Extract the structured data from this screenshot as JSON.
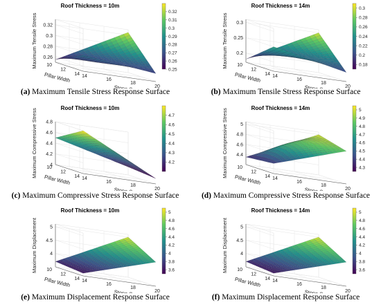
{
  "colors": {
    "viridis": [
      "#440154",
      "#3b528b",
      "#21918c",
      "#5ec962",
      "#fde725"
    ],
    "grid": "#e6e6e6",
    "axis": "#555555"
  },
  "chart_data": [
    {
      "type": "surface3d",
      "title": "Roof Thickness = 10m",
      "xlabel": "Stope Span",
      "ylabel": "Pillar Width",
      "zlabel": "Maximum Tensile Stress",
      "x_ticks": [
        "14",
        "16",
        "18",
        "20"
      ],
      "y_ticks": [
        "10",
        "12",
        "14"
      ],
      "z_ticks": [
        "0.26",
        "0.28",
        "0.3",
        "0.32"
      ],
      "colorbar_ticks": [
        "0.25",
        "0.26",
        "0.27",
        "0.28",
        "0.29",
        "0.3",
        "0.31",
        "0.32"
      ],
      "corners": {
        "x14_y14": 0.28,
        "x20_y14": 0.265,
        "x14_y10": 0.255,
        "x20_y10": 0.325
      },
      "center": 0.27,
      "zlim": [
        0.25,
        0.33
      ],
      "clim": [
        0.25,
        0.33
      ],
      "caption_tag": "(a)",
      "caption_text": " Maximum Tensile Stress Response Surface"
    },
    {
      "type": "surface3d",
      "title": "Roof Thickness = 14m",
      "xlabel": "Stope Span",
      "ylabel": "Pillar Width",
      "zlabel": "Maximum Tensile Stress",
      "x_ticks": [
        "14",
        "16",
        "18",
        "20"
      ],
      "y_ticks": [
        "10",
        "12",
        "14"
      ],
      "z_ticks": [
        "0.2",
        "0.25",
        "0.3"
      ],
      "colorbar_ticks": [
        "0.18",
        "0.2",
        "0.22",
        "0.24",
        "0.26",
        "0.28",
        "0.3"
      ],
      "corners": {
        "x14_y14": 0.25,
        "x20_y14": 0.2,
        "x14_y10": 0.18,
        "x20_y10": 0.3
      },
      "center": 0.22,
      "zlim": [
        0.17,
        0.31
      ],
      "clim": [
        0.17,
        0.31
      ],
      "caption_tag": "(b)",
      "caption_text": " Maximum Tensile Stress Response Surface"
    },
    {
      "type": "surface3d",
      "title": "Roof Thickness = 10m",
      "xlabel": "Stope Span",
      "ylabel": "Pillar Width",
      "zlabel": "Maximum Compressive Stress",
      "x_ticks": [
        "14",
        "16",
        "18",
        "20"
      ],
      "y_ticks": [
        "10",
        "12",
        "14"
      ],
      "z_ticks": [
        "4",
        "4.2",
        "4.4",
        "4.6",
        "4.8"
      ],
      "colorbar_ticks": [
        "4.2",
        "4.3",
        "4.4",
        "4.5",
        "4.6",
        "4.7"
      ],
      "corners": {
        "x14_y14": 4.8,
        "x20_y14": 4.1,
        "x14_y10": 4.5,
        "x20_y10": 4.15
      },
      "center": 4.45,
      "zlim": [
        4.0,
        4.8
      ],
      "clim": [
        4.1,
        4.8
      ],
      "caption_tag": "(c)",
      "caption_text": " Maximum Compressive Stress Response Surface"
    },
    {
      "type": "surface3d",
      "title": "Roof Thickness = 14m",
      "xlabel": "Stope Span",
      "ylabel": "Pillar Width",
      "zlabel": "Maximum Compressive Stress",
      "x_ticks": [
        "14",
        "16",
        "18",
        "20"
      ],
      "y_ticks": [
        "10",
        "12",
        "14"
      ],
      "z_ticks": [
        "4.4",
        "4.6",
        "4.8",
        "5"
      ],
      "colorbar_ticks": [
        "4.3",
        "4.4",
        "4.5",
        "4.6",
        "4.7",
        "4.8",
        "4.9",
        "5"
      ],
      "corners": {
        "x14_y14": 4.4,
        "x20_y14": 4.85,
        "x14_y10": 4.35,
        "x20_y10": 5.0
      },
      "center": 4.8,
      "zlim": [
        4.2,
        5.05
      ],
      "clim": [
        4.25,
        5.05
      ],
      "caption_tag": "(d)",
      "caption_text": " Maximum Compressive Stress Response Surface"
    },
    {
      "type": "surface3d",
      "title": "Roof Thickness = 10m",
      "xlabel": "Stope Span",
      "ylabel": "Pillar Width",
      "zlabel": "Maximum Displacement",
      "x_ticks": [
        "14",
        "16",
        "18",
        "20"
      ],
      "y_ticks": [
        "10",
        "12",
        "14"
      ],
      "z_ticks": [
        "4",
        "4.5",
        "5"
      ],
      "colorbar_ticks": [
        "3.6",
        "3.8",
        "4",
        "4.2",
        "4.4",
        "4.6",
        "4.8",
        "5"
      ],
      "corners": {
        "x14_y14": 3.6,
        "x20_y14": 4.4,
        "x14_y10": 3.7,
        "x20_y10": 5.0
      },
      "center": 4.1,
      "zlim": [
        3.5,
        5.1
      ],
      "clim": [
        3.5,
        5.1
      ],
      "caption_tag": "(e)",
      "caption_text": " Maximum Displacement Response Surface"
    },
    {
      "type": "surface3d",
      "title": "Roof Thickness = 14m",
      "xlabel": "Stope Span",
      "ylabel": "Pillar Width",
      "zlabel": "Maximum Displacement",
      "x_ticks": [
        "14",
        "16",
        "18",
        "20"
      ],
      "y_ticks": [
        "10",
        "12",
        "14"
      ],
      "z_ticks": [
        "4",
        "4.5",
        "5"
      ],
      "colorbar_ticks": [
        "3.6",
        "3.8",
        "4",
        "4.2",
        "4.4",
        "4.6",
        "4.8",
        "5"
      ],
      "corners": {
        "x14_y14": 3.6,
        "x20_y14": 4.4,
        "x14_y10": 3.7,
        "x20_y10": 5.0
      },
      "center": 4.1,
      "zlim": [
        3.5,
        5.1
      ],
      "clim": [
        3.5,
        5.1
      ],
      "caption_tag": "(f)",
      "caption_text": " Maximum Displacement Response Surface"
    }
  ]
}
